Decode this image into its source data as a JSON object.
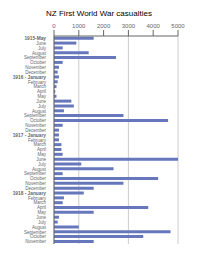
{
  "chart_data": {
    "type": "bar",
    "orientation": "horizontal",
    "title": "NZ First World War casualties",
    "categories": [
      "1915-May",
      "June",
      "July",
      "August",
      "September",
      "October",
      "November",
      "December",
      "1916 - January",
      "February",
      "March",
      "April",
      "May",
      "June",
      "July",
      "August",
      "September",
      "October",
      "November",
      "December",
      "1917 - January",
      "February",
      "March",
      "April",
      "May",
      "June",
      "July",
      "August",
      "September",
      "October",
      "November",
      "December",
      "1918 - January",
      "February",
      "March",
      "April",
      "May",
      "June",
      "July",
      "August",
      "September",
      "October",
      "November"
    ],
    "values": [
      1600,
      900,
      350,
      1400,
      2500,
      350,
      200,
      150,
      200,
      150,
      100,
      50,
      100,
      700,
      800,
      400,
      2800,
      4600,
      350,
      200,
      200,
      200,
      300,
      300,
      350,
      5000,
      1100,
      2400,
      350,
      4200,
      2800,
      1600,
      1200,
      400,
      350,
      3800,
      1600,
      200,
      150,
      1000,
      4700,
      3600,
      1600
    ],
    "color": "#6677bb",
    "xlim": [
      0,
      5000
    ],
    "xticks": [
      0,
      1000,
      2000,
      3000,
      4000,
      5000
    ],
    "grid": true
  }
}
